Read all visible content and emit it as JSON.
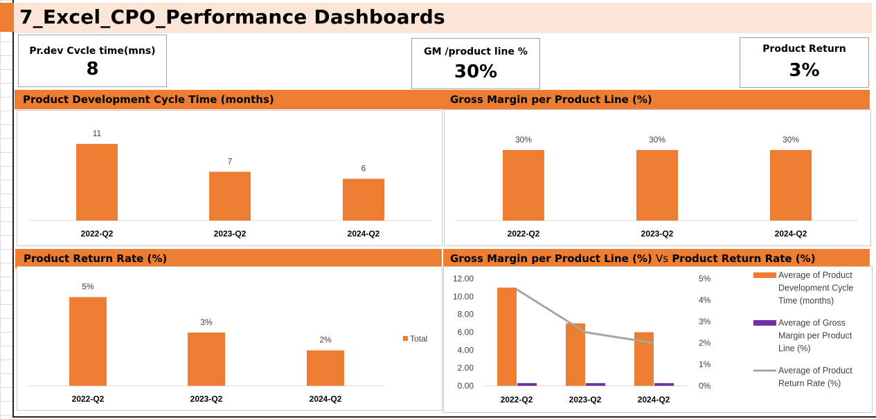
{
  "title": "7_Excel_CPO_Performance Dashboards",
  "kpis": {
    "dev_cycle": {
      "label": "Pr.dev Cvcle time(mns)",
      "value": "8"
    },
    "gm": {
      "label": "GM /product line %",
      "value": "30%"
    },
    "returns": {
      "label": "Product Return",
      "value": "3%"
    }
  },
  "colors": {
    "orange": "#ed7d31",
    "purple": "#7030a0",
    "gray": "#a5a5a5",
    "title_bg": "#fce4d6"
  },
  "chart_data": [
    {
      "type": "bar",
      "title": "Product Development Cycle Time (months)",
      "categories": [
        "2022-Q2",
        "2023-Q2",
        "2024-Q2"
      ],
      "values": [
        11,
        7,
        6
      ],
      "labels": [
        "11",
        "7",
        "6"
      ],
      "ylim": [
        0,
        12
      ]
    },
    {
      "type": "bar",
      "title": "Gross Margin per Product Line (%)",
      "categories": [
        "2022-Q2",
        "2023-Q2",
        "2024-Q2"
      ],
      "values": [
        30,
        30,
        30
      ],
      "labels": [
        "30%",
        "30%",
        "30%"
      ],
      "ylim": [
        0,
        40
      ]
    },
    {
      "type": "bar",
      "title": "Product Return Rate (%)",
      "categories": [
        "2022-Q2",
        "2023-Q2",
        "2024-Q2"
      ],
      "values": [
        5,
        3,
        2
      ],
      "labels": [
        "5%",
        "3%",
        "2%"
      ],
      "legend": [
        "Total"
      ],
      "legend_position": "right",
      "ylim": [
        0,
        6
      ]
    },
    {
      "type": "bar",
      "title_part1": "Gross Margin per Product Line (%)",
      "title_vs": "Vs",
      "title_part2": "Product Return Rate (%)",
      "categories": [
        "2022-Q2",
        "2023-Q2",
        "2024-Q2"
      ],
      "y_ticks": [
        "0.00",
        "2.00",
        "4.00",
        "6.00",
        "8.00",
        "10.00",
        "12.00"
      ],
      "ylim": [
        0,
        12
      ],
      "y2_ticks": [
        "0%",
        "1%",
        "2%",
        "3%",
        "4%",
        "5%"
      ],
      "y2lim": [
        0,
        5
      ],
      "legend_position": "right",
      "series": [
        {
          "name": "Average of Product Development Cycle Time (months)",
          "kind": "bar",
          "axis": "left",
          "values": [
            11,
            7,
            6
          ]
        },
        {
          "name": "Average of Gross Margin per Product Line (%)",
          "kind": "bar",
          "axis": "left",
          "values": [
            0.3,
            0.3,
            0.3
          ]
        },
        {
          "name": "Average of Product Return Rate (%)",
          "kind": "line",
          "axis": "right",
          "values": [
            4.5,
            2.5,
            2.0
          ]
        }
      ]
    }
  ]
}
